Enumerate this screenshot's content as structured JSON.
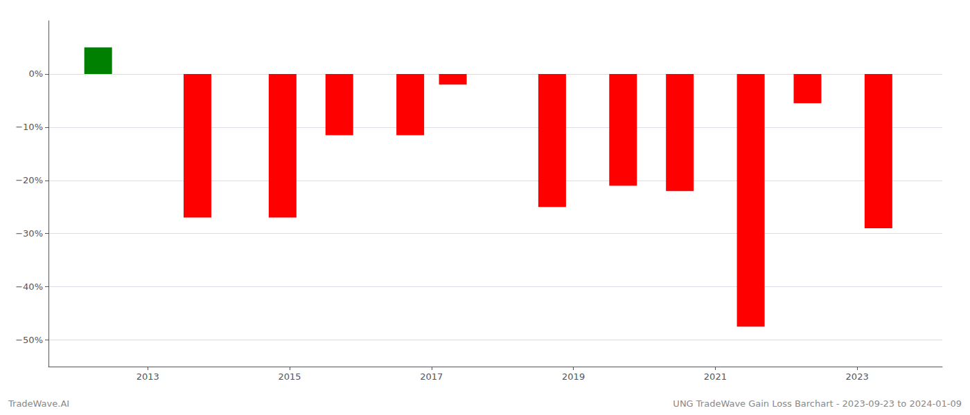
{
  "chart_data": {
    "type": "bar",
    "x": [
      2012.3,
      2013.7,
      2014.9,
      2015.7,
      2016.7,
      2017.3,
      2018.7,
      2019.7,
      2020.5,
      2021.5,
      2022.3,
      2023.3
    ],
    "values": [
      5.0,
      -27.0,
      -27.0,
      -11.5,
      -11.5,
      -2.0,
      -25.0,
      -21.0,
      -22.0,
      -47.5,
      -5.5,
      -29.0
    ],
    "colors": [
      "#008000",
      "#ff0000",
      "#ff0000",
      "#ff0000",
      "#ff0000",
      "#ff0000",
      "#ff0000",
      "#ff0000",
      "#ff0000",
      "#ff0000",
      "#ff0000",
      "#ff0000"
    ],
    "xlim": [
      2011.6,
      2024.2
    ],
    "xticks": [
      2013,
      2015,
      2017,
      2019,
      2021,
      2023
    ],
    "ylim": [
      -55,
      10
    ],
    "yticks": [
      {
        "value": 0,
        "label": "0%"
      },
      {
        "value": -10,
        "label": "−10%"
      },
      {
        "value": -20,
        "label": "−20%"
      },
      {
        "value": -30,
        "label": "−30%"
      },
      {
        "value": -40,
        "label": "−40%"
      },
      {
        "value": -50,
        "label": "−50%"
      }
    ],
    "grid": true,
    "annotations": [
      "TradeWave.AI",
      "UNG TradeWave Gain Loss Barchart - 2023-09-23 to 2024-01-09"
    ]
  }
}
